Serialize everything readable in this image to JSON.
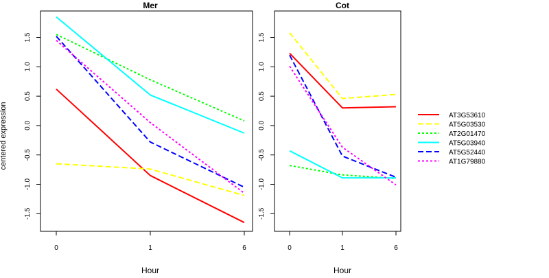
{
  "chart_data": [
    {
      "type": "line",
      "title": "Mer",
      "xlabel": "Hour",
      "ylabel": "centered expression",
      "categories": [
        "0",
        "1",
        "6"
      ],
      "ylim": [
        -1.8,
        1.95
      ],
      "yticks": [
        -1.5,
        -1.0,
        -0.5,
        0.0,
        0.5,
        1.0,
        1.5
      ],
      "yticklabels": [
        "-1.5",
        "-1.0",
        "-0.5",
        "0.0",
        "0.5",
        "1.0",
        "1.5"
      ],
      "series": [
        {
          "name": "AT3G53610",
          "values": [
            0.62,
            -0.85,
            -1.65
          ]
        },
        {
          "name": "AT5G03530",
          "values": [
            -0.65,
            -0.74,
            -1.19
          ]
        },
        {
          "name": "AT2G01470",
          "values": [
            1.55,
            0.78,
            0.08
          ]
        },
        {
          "name": "AT5G03940",
          "values": [
            1.85,
            0.52,
            -0.13
          ]
        },
        {
          "name": "AT5G52440",
          "values": [
            1.52,
            -0.28,
            -1.05
          ]
        },
        {
          "name": "AT1G79880",
          "values": [
            1.45,
            0.05,
            -1.15
          ]
        }
      ]
    },
    {
      "type": "line",
      "title": "Cot",
      "xlabel": "Hour",
      "categories": [
        "0",
        "1",
        "6"
      ],
      "ylim": [
        -1.8,
        1.95
      ],
      "yticks": [
        -1.5,
        -1.0,
        -0.5,
        0.0,
        0.5,
        1.0,
        1.5
      ],
      "yticklabels": [
        "-1.5",
        "-1.0",
        "-0.5",
        "0.0",
        "0.5",
        "1.0",
        "1.5"
      ],
      "series": [
        {
          "name": "AT3G53610",
          "values": [
            1.23,
            0.3,
            0.32
          ]
        },
        {
          "name": "AT5G03530",
          "values": [
            1.58,
            0.46,
            0.53
          ]
        },
        {
          "name": "AT2G01470",
          "values": [
            -0.68,
            -0.84,
            -0.9
          ]
        },
        {
          "name": "AT5G03940",
          "values": [
            -0.43,
            -0.89,
            -0.89
          ]
        },
        {
          "name": "AT5G52440",
          "values": [
            1.2,
            -0.52,
            -0.88
          ]
        },
        {
          "name": "AT1G79880",
          "values": [
            1.01,
            -0.37,
            -1.01
          ]
        }
      ]
    }
  ],
  "legend": {
    "placement": "right",
    "entries": [
      {
        "name": "AT3G53610",
        "color": "#ff0000",
        "dash": "solid"
      },
      {
        "name": "AT5G03530",
        "color": "#ffff00",
        "dash": "dashed"
      },
      {
        "name": "AT2G01470",
        "color": "#00ff00",
        "dash": "dotted"
      },
      {
        "name": "AT5G03940",
        "color": "#00ffff",
        "dash": "solid"
      },
      {
        "name": "AT5G52440",
        "color": "#0000ff",
        "dash": "dashed"
      },
      {
        "name": "AT1G79880",
        "color": "#ff00ff",
        "dash": "dotted"
      }
    ]
  }
}
